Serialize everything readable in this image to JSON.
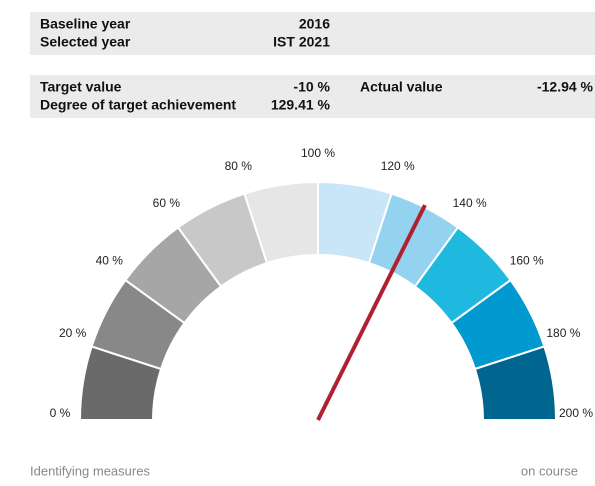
{
  "panels": {
    "baseline_label": "Baseline year",
    "baseline_value": "2016",
    "selected_label": "Selected year",
    "selected_value": "IST 2021",
    "target_label": "Target value",
    "target_value": "-10 %",
    "actual_label": "Actual value",
    "actual_value": "-12.94 %",
    "degree_label": "Degree of target achievement"
  },
  "chart_data": {
    "type": "gauge",
    "value": 129.41,
    "value_label": "129.41 %",
    "needle_color": "#b0202e",
    "xlim": [
      0,
      200
    ],
    "xticks": [
      {
        "value": 0,
        "label": "0 %"
      },
      {
        "value": 20,
        "label": "20 %"
      },
      {
        "value": 40,
        "label": "40 %"
      },
      {
        "value": 60,
        "label": "60 %"
      },
      {
        "value": 80,
        "label": "80 %"
      },
      {
        "value": 100,
        "label": "100 %"
      },
      {
        "value": 120,
        "label": "120 %"
      },
      {
        "value": 140,
        "label": "140 %"
      },
      {
        "value": 160,
        "label": "160 %"
      },
      {
        "value": 180,
        "label": "180 %"
      },
      {
        "value": 200,
        "label": "200 %"
      }
    ],
    "band_colors": [
      "#6a6a6a",
      "#888888",
      "#a6a6a6",
      "#c8c8c8",
      "#e6e6e6",
      "#c9e6f8",
      "#93d3ef",
      "#1fb9e0",
      "#0099d0",
      "#006690"
    ],
    "footer_left": "Identifying measures",
    "footer_right": "on course"
  }
}
